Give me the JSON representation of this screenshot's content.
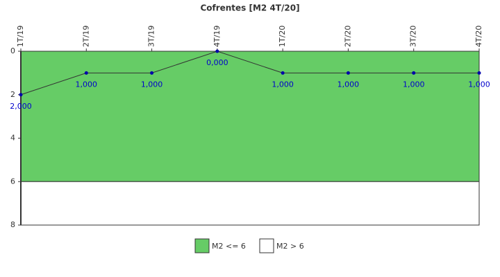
{
  "chart_data": {
    "type": "line",
    "title": "Cofrentes [M2 4T/20]",
    "categories": [
      "1T/19",
      "2T/19",
      "3T/19",
      "4T/19",
      "1T/20",
      "2T/20",
      "3T/20",
      "4T/20"
    ],
    "values": [
      2,
      1,
      1,
      0,
      1,
      1,
      1,
      1
    ],
    "value_labels": [
      "2,000",
      "1,000",
      "1,000",
      "0,000",
      "1,000",
      "1,000",
      "1,000",
      "1,000"
    ],
    "color": "#333333",
    "marker_color": "#0000aa",
    "ylim": [
      8,
      0
    ],
    "yticks": [
      0,
      2,
      4,
      6,
      8
    ],
    "bands": [
      {
        "name": "M2 <= 6",
        "color": "#66cc66",
        "range": [
          0,
          6
        ]
      },
      {
        "name": "M2 > 6",
        "color": "#ffffff",
        "range": [
          6,
          8
        ]
      }
    ]
  }
}
